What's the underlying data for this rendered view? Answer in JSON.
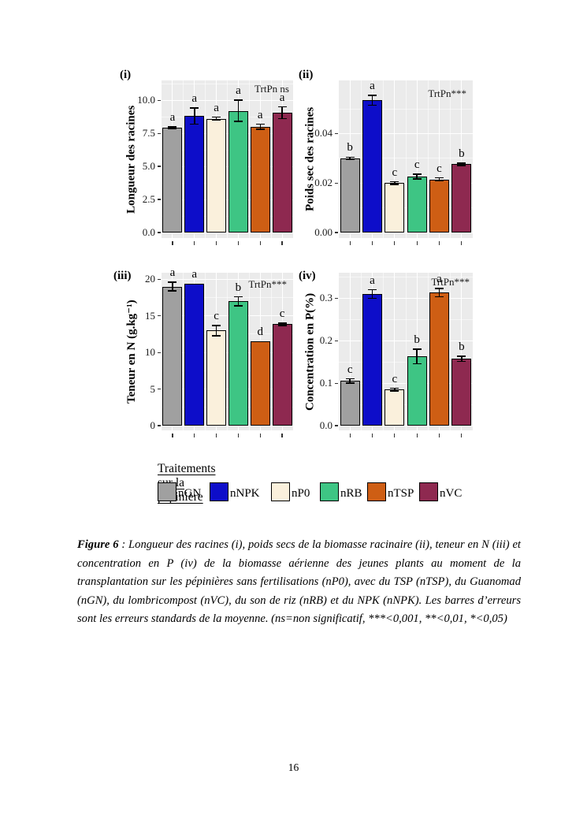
{
  "page": {
    "number": "16"
  },
  "treatments": [
    {
      "id": "nGN",
      "color": "#A0A0A0"
    },
    {
      "id": "nNPK",
      "color": "#0D0DC9"
    },
    {
      "id": "nP0",
      "color": "#FAF0DC"
    },
    {
      "id": "nRB",
      "color": "#3EC584"
    },
    {
      "id": "nTSP",
      "color": "#CE5E14"
    },
    {
      "id": "nVC",
      "color": "#8E2950"
    }
  ],
  "legend": {
    "title": "Traitements sur la pépinière"
  },
  "chart_data": [
    {
      "type": "bar",
      "panel": "(i)",
      "ylabel": "Longueur des racines",
      "xlabel": "",
      "annotation": "TrtPn ns",
      "categories": [
        "nGN",
        "nNPK",
        "nP0",
        "nRB",
        "nTSP",
        "nVC"
      ],
      "values": [
        7.9,
        8.8,
        8.6,
        9.2,
        8.0,
        9.05
      ],
      "errors": [
        0.07,
        0.62,
        0.12,
        0.8,
        0.18,
        0.45
      ],
      "letters": [
        "a",
        "a",
        "a",
        "a",
        "a",
        "a"
      ],
      "yticks": [
        0,
        2.5,
        5,
        7.5,
        10
      ],
      "ytick_labels": [
        "0.0",
        "2.5",
        "5.0",
        "7.5",
        "10.0"
      ],
      "ylim": [
        0,
        11.5
      ],
      "grid": true,
      "legend_position": "none"
    },
    {
      "type": "bar",
      "panel": "(ii)",
      "ylabel": "Poids sec des racines",
      "xlabel": "",
      "annotation": "TrtPn***",
      "categories": [
        "nGN",
        "nNPK",
        "nP0",
        "nRB",
        "nTSP",
        "nVC"
      ],
      "values": [
        0.03,
        0.0535,
        0.02,
        0.0226,
        0.0215,
        0.0276
      ],
      "errors": [
        0.0005,
        0.002,
        0.0005,
        0.001,
        0.0006,
        0.0005
      ],
      "letters": [
        "b",
        "a",
        "c",
        "c",
        "c",
        "b"
      ],
      "yticks": [
        0,
        0.02,
        0.04
      ],
      "ytick_labels": [
        "0.00",
        "0.02",
        "0.04"
      ],
      "ylim": [
        0,
        0.0615
      ],
      "grid": true,
      "legend_position": "none"
    },
    {
      "type": "bar",
      "panel": "(iii)",
      "ylabel": "Teneur en N  (g.kg⁻¹)",
      "xlabel": "",
      "annotation": "TrtPn***",
      "categories": [
        "nGN",
        "nNPK",
        "nP0",
        "nRB",
        "nTSP",
        "nVC"
      ],
      "values": [
        19.0,
        19.4,
        13.0,
        17.0,
        11.5,
        13.85
      ],
      "errors": [
        0.6,
        0,
        0.7,
        0.6,
        0,
        0.15
      ],
      "letters": [
        "a",
        "a",
        "c",
        "b",
        "d",
        "c"
      ],
      "yticks": [
        0,
        5,
        10,
        15,
        20
      ],
      "ytick_labels": [
        "0",
        "5",
        "10",
        "15",
        "20"
      ],
      "ylim": [
        0,
        20.9
      ],
      "grid": true,
      "legend_position": "none"
    },
    {
      "type": "bar",
      "panel": "(iv)",
      "ylabel": "Concentration en P(%)",
      "xlabel": "",
      "annotation": "TrtPn***",
      "categories": [
        "nGN",
        "nNPK",
        "nP0",
        "nRB",
        "nTSP",
        "nVC"
      ],
      "values": [
        0.105,
        0.31,
        0.085,
        0.163,
        0.313,
        0.157
      ],
      "errors": [
        0.005,
        0.01,
        0.003,
        0.017,
        0.01,
        0.006
      ],
      "letters": [
        "c",
        "a",
        "c",
        "b",
        "a",
        "b"
      ],
      "yticks": [
        0,
        0.1,
        0.2,
        0.3
      ],
      "ytick_labels": [
        "0.0",
        "0.1",
        "0.2",
        "0.3"
      ],
      "ylim": [
        0,
        0.36
      ],
      "grid": true,
      "legend_position": "none"
    }
  ],
  "caption": {
    "figure_label": "Figure 6",
    "text": " : Longueur des racines (i), poids secs de la biomasse racinaire (ii), teneur en N (iii) et concentration en P (iv) de la biomasse aérienne des jeunes plants au moment de la transplantation sur les pépinières sans fertilisations (nP0), avec du TSP (nTSP), du Guanomad (nGN), du lombricompost (nVC), du son de riz (nRB) et du NPK (nNPK). Les barres d’erreurs sont les erreurs standards de la moyenne. (ns=non significatif, ***<0,001, **<0,01, *<0,05)"
  }
}
